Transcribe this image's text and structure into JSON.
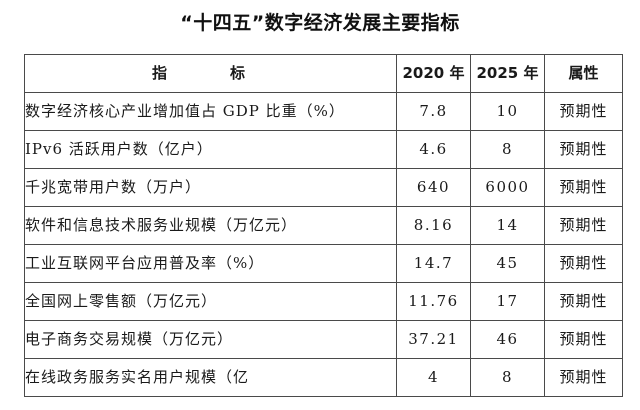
{
  "title": "“十四五”数字经济发展主要指标",
  "table": {
    "headers": {
      "indicator": "指　标",
      "y2020": "2020 年",
      "y2025": "2025 年",
      "attribute": "属性"
    },
    "rows": [
      {
        "indicator": "数字经济核心产业增加值占 GDP 比重（%）",
        "y2020": "7.8",
        "y2025": "10",
        "attribute": "预期性"
      },
      {
        "indicator": "IPv6 活跃用户数（亿户）",
        "y2020": "4.6",
        "y2025": "8",
        "attribute": "预期性"
      },
      {
        "indicator": "千兆宽带用户数（万户）",
        "y2020": "640",
        "y2025": "6000",
        "attribute": "预期性"
      },
      {
        "indicator": "软件和信息技术服务业规模（万亿元）",
        "y2020": "8.16",
        "y2025": "14",
        "attribute": "预期性"
      },
      {
        "indicator": "工业互联网平台应用普及率（%）",
        "y2020": "14.7",
        "y2025": "45",
        "attribute": "预期性"
      },
      {
        "indicator": "全国网上零售额（万亿元）",
        "y2020": "11.76",
        "y2025": "17",
        "attribute": "预期性"
      },
      {
        "indicator": "电子商务交易规模（万亿元）",
        "y2020": "37.21",
        "y2025": "46",
        "attribute": "预期性"
      },
      {
        "indicator": "在线政务服务实名用户规模（亿",
        "y2020": "4",
        "y2025": "8",
        "attribute": "预期性"
      }
    ]
  }
}
